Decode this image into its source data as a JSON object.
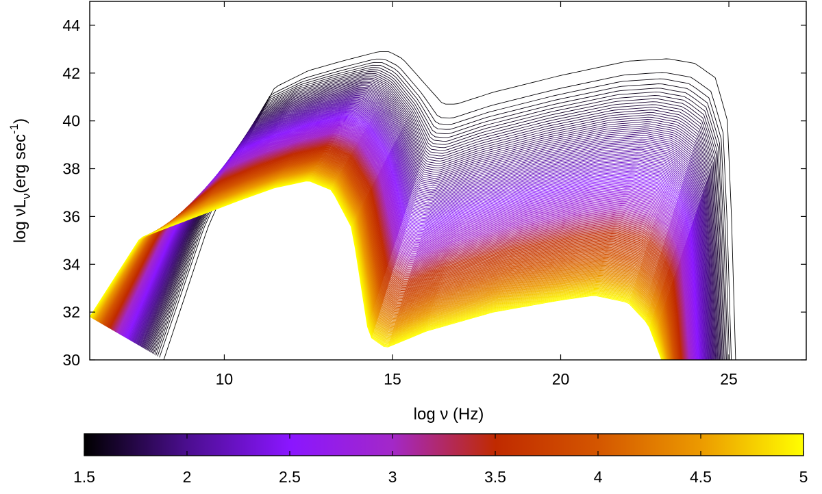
{
  "chart_data": {
    "type": "line",
    "xlabel": "log ν (Hz)",
    "ylabel_main": "log νL",
    "ylabel_sub": "ν",
    "ylabel_unit": "(erg sec",
    "ylabel_exp": "-1",
    "ylabel_close": ")",
    "xlim": [
      6,
      27.3
    ],
    "ylim": [
      30,
      45
    ],
    "xticks": [
      {
        "value": 10,
        "label": "10"
      },
      {
        "value": 15,
        "label": "15"
      },
      {
        "value": 20,
        "label": "20"
      },
      {
        "value": 25,
        "label": "25"
      }
    ],
    "yticks": [
      {
        "value": 30,
        "label": "30"
      },
      {
        "value": 32,
        "label": "32"
      },
      {
        "value": 34,
        "label": "34"
      },
      {
        "value": 36,
        "label": "36"
      },
      {
        "value": 38,
        "label": "38"
      },
      {
        "value": 40,
        "label": "40"
      },
      {
        "value": 42,
        "label": "42"
      },
      {
        "value": 44,
        "label": "44"
      }
    ],
    "series_family": {
      "parameter_range": [
        1.5,
        5
      ],
      "count": 180,
      "description_of_shape": "SED curves parameterized by the color-bar value",
      "envelope_low": {
        "x": [
          6.0,
          7.5,
          9.0,
          10.5,
          11.5,
          12.5,
          13.2,
          13.8,
          14.3,
          14.8,
          16.0,
          18.0,
          20.0,
          21.0,
          22.0,
          22.6,
          23.0
        ],
        "y": [
          31.8,
          35.1,
          35.9,
          36.7,
          37.2,
          37.5,
          37.1,
          35.5,
          31.0,
          30.5,
          31.2,
          32.0,
          32.5,
          32.7,
          32.4,
          31.5,
          30.0
        ]
      },
      "envelope_high": {
        "x": [
          8.2,
          9.5,
          10.5,
          11.5,
          12.5,
          13.5,
          14.6,
          14.9,
          15.3,
          16.5,
          16.9,
          18.0,
          20.0,
          22.0,
          23.2,
          24.0,
          24.6,
          25.0,
          25.2
        ],
        "y": [
          30.0,
          35.5,
          38.7,
          41.4,
          42.1,
          42.5,
          42.9,
          42.9,
          42.6,
          40.7,
          40.7,
          41.2,
          41.9,
          42.5,
          42.6,
          42.4,
          41.8,
          39.8,
          30.0
        ]
      }
    },
    "colorbar": {
      "min": 1.5,
      "max": 5,
      "ticks": [
        {
          "value": 1.5,
          "label": "1.5"
        },
        {
          "value": 2,
          "label": "2"
        },
        {
          "value": 2.5,
          "label": "2.5"
        },
        {
          "value": 3,
          "label": "3"
        },
        {
          "value": 3.5,
          "label": "3.5"
        },
        {
          "value": 4,
          "label": "4"
        },
        {
          "value": 4.5,
          "label": "4.5"
        },
        {
          "value": 5,
          "label": "5"
        }
      ],
      "colors": [
        "#000000",
        "#4b0e8f",
        "#8a16ff",
        "#a328c8",
        "#c02a00",
        "#d45600",
        "#ec9a00",
        "#ffff00"
      ]
    }
  }
}
